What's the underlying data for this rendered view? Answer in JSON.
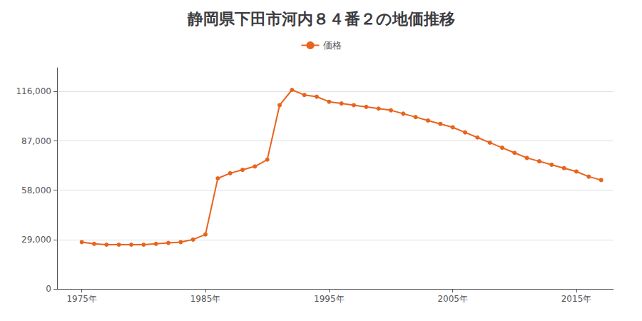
{
  "chart_data": {
    "type": "line",
    "title": "静岡県下田市河内８４番２の地価推移",
    "x": [
      1975,
      1976,
      1977,
      1978,
      1979,
      1980,
      1981,
      1982,
      1983,
      1984,
      1985,
      1986,
      1987,
      1988,
      1989,
      1990,
      1991,
      1992,
      1993,
      1994,
      1995,
      1996,
      1997,
      1998,
      1999,
      2000,
      2001,
      2002,
      2003,
      2004,
      2005,
      2006,
      2007,
      2008,
      2009,
      2010,
      2011,
      2012,
      2013,
      2014,
      2015,
      2016,
      2017
    ],
    "series": [
      {
        "name": "価格",
        "color": "#E8641E",
        "marker": "circle",
        "values": [
          27500,
          26500,
          26000,
          26000,
          26000,
          26000,
          26500,
          27000,
          27500,
          29000,
          32000,
          65000,
          68000,
          70000,
          72000,
          76000,
          108000,
          117000,
          114000,
          113000,
          110000,
          109000,
          108000,
          107000,
          106000,
          105000,
          103000,
          101000,
          99000,
          97000,
          95000,
          92000,
          89000,
          86000,
          83000,
          80000,
          77000,
          75000,
          73000,
          71000,
          69000,
          66000,
          64000
        ]
      }
    ],
    "xlim": [
      1973,
      2018
    ],
    "xticks": [
      {
        "value": 1975,
        "label": "1975年"
      },
      {
        "value": 1985,
        "label": "1985年"
      },
      {
        "value": 1995,
        "label": "1995年"
      },
      {
        "value": 2005,
        "label": "2005年"
      },
      {
        "value": 2015,
        "label": "2015年"
      }
    ],
    "ylim": [
      0,
      130000
    ],
    "yticks": [
      0,
      {
        "value": 29000,
        "label": "29,000"
      },
      {
        "value": 58000,
        "label": "58,000"
      },
      {
        "value": 87000,
        "label": "87,000"
      },
      {
        "value": 116000,
        "label": "116,000"
      }
    ],
    "grid": true,
    "legend": "top"
  }
}
